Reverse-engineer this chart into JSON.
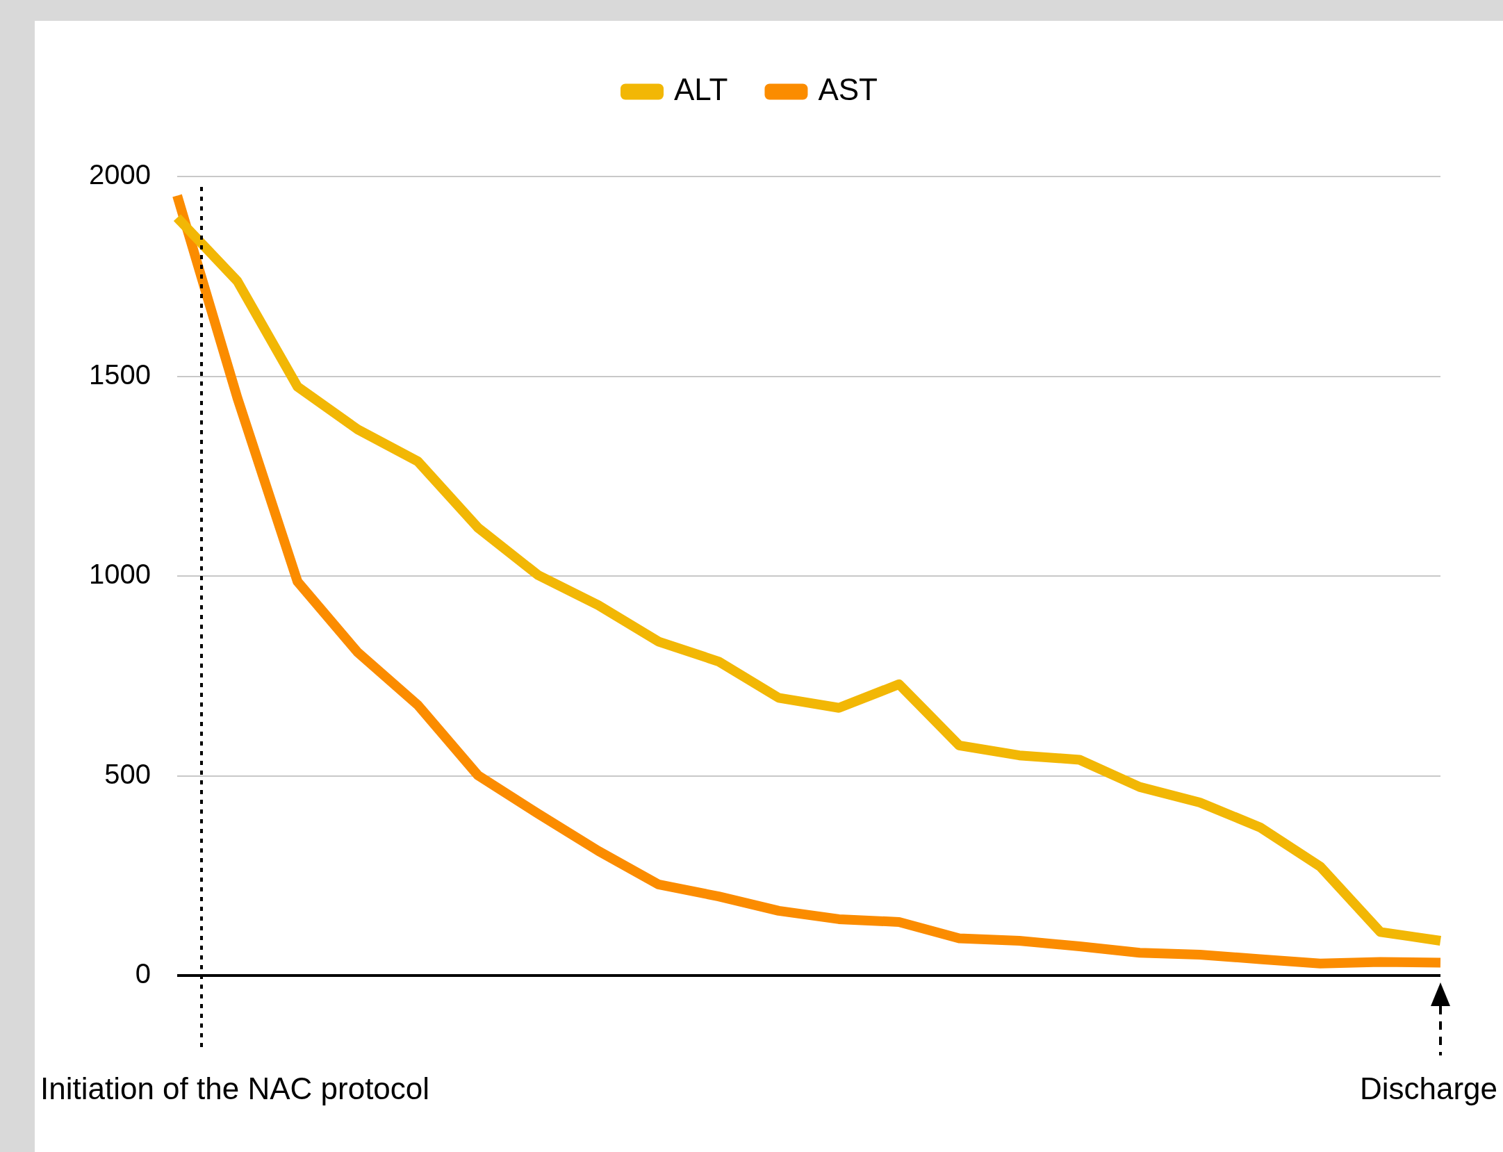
{
  "chart_data": {
    "type": "line",
    "categories": [
      null,
      null,
      null,
      null,
      null,
      null,
      null,
      null,
      null,
      null,
      null,
      null,
      null,
      null,
      null,
      null,
      null,
      null,
      null,
      null,
      null,
      null
    ],
    "series": [
      {
        "name": "ALT",
        "color": "#f2b705",
        "values": [
          1897,
          1738,
          1474,
          1367,
          1287,
          1121,
          1002,
          927,
          836,
          786,
          695,
          670,
          729,
          576,
          551,
          540,
          472,
          433,
          371,
          273,
          109,
          87
        ]
      },
      {
        "name": "AST",
        "color": "#fb8c00",
        "values": [
          1952,
          1446,
          986,
          809,
          677,
          501,
          405,
          312,
          228,
          198,
          162,
          141,
          134,
          93,
          87,
          73,
          57,
          52,
          41,
          30,
          34,
          32
        ]
      }
    ],
    "ylim": [
      0,
      2000
    ],
    "yticks": [
      0,
      500,
      1000,
      1500,
      2000
    ],
    "grid": "y",
    "legend": "top",
    "marker": "none",
    "line_style": "solid",
    "annotations": [
      "Initiation of the NAC protocol",
      "Discharge"
    ]
  }
}
